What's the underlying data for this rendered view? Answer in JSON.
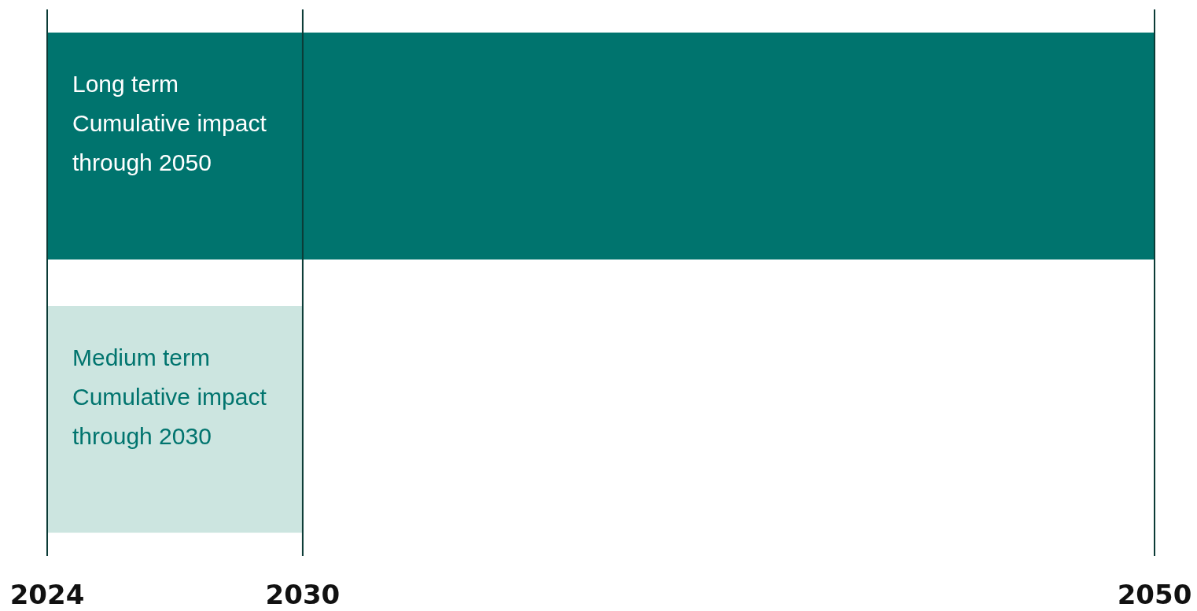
{
  "chart_data": {
    "type": "bar",
    "orientation": "horizontal",
    "categories": [
      "Long term\nCumulative impact\nthrough 2050",
      "Medium term\nCumulative impact\nthrough 2030"
    ],
    "base": [
      2024,
      2024
    ],
    "values": [
      26,
      6
    ],
    "colors": [
      "#00746e",
      "#cce5e0"
    ],
    "xlim": [
      2024,
      2050
    ],
    "xticks": [
      2024,
      2030,
      2050
    ],
    "ref_lines": [
      {
        "axis": "x",
        "value": 2030,
        "color": "#0b3b36"
      }
    ],
    "tick_labels": "x"
  }
}
